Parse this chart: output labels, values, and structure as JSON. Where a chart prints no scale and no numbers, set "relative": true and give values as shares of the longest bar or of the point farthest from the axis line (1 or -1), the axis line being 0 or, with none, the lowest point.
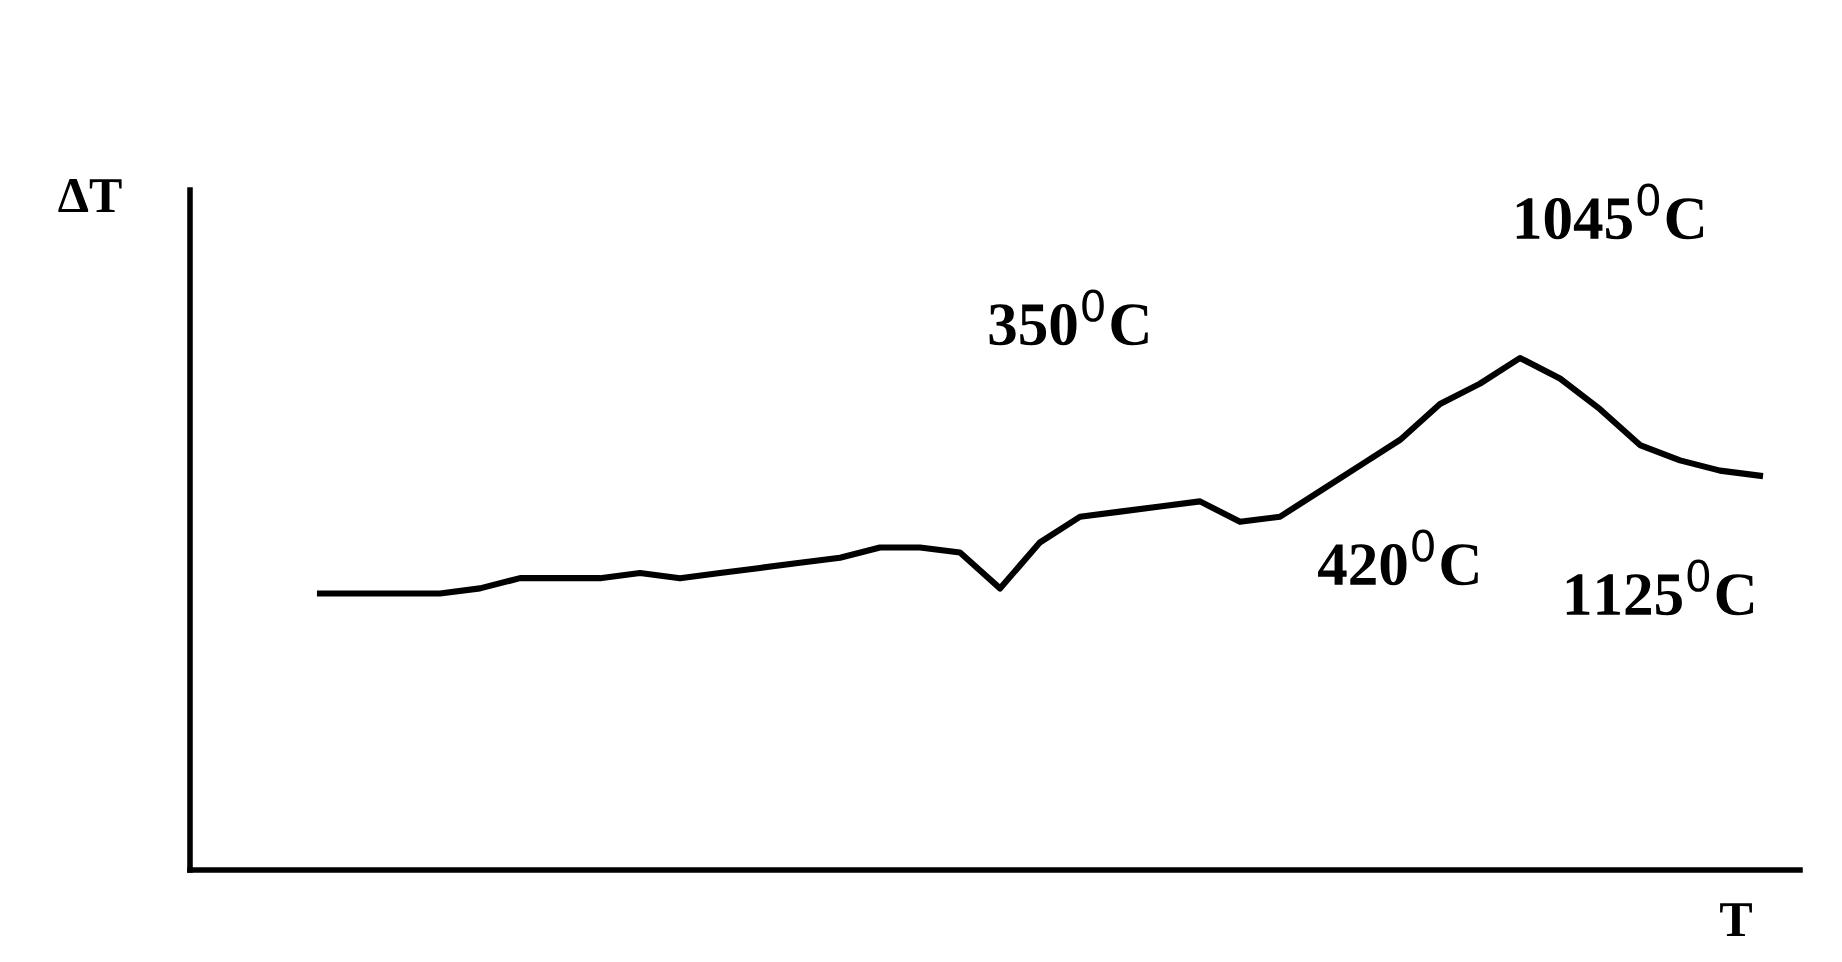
{
  "chart_data": {
    "type": "line",
    "relative": true,
    "xlabel": "T",
    "ylabel": "ΔT",
    "color": "#000000",
    "categories": [
      null,
      null,
      null,
      null,
      null,
      null,
      null,
      null,
      null,
      null,
      null,
      null,
      null,
      null,
      null,
      null,
      null,
      null,
      null,
      null,
      null,
      null,
      null,
      null,
      null,
      null,
      null,
      null,
      null,
      null,
      null,
      null,
      null,
      null,
      null,
      null,
      null
    ],
    "values": [
      0.54,
      0.54,
      0.54,
      0.54,
      0.55,
      0.57,
      0.57,
      0.57,
      0.58,
      0.57,
      0.58,
      0.59,
      0.6,
      0.61,
      0.63,
      0.63,
      0.62,
      0.55,
      0.64,
      0.69,
      0.7,
      0.71,
      0.72,
      0.68,
      0.69,
      0.74,
      0.79,
      0.84,
      0.91,
      0.95,
      1.0,
      0.96,
      0.9,
      0.83,
      0.8,
      0.78,
      0.77
    ],
    "annotations": [
      "350$^{0}$C",
      "420$^{0}$C",
      "1045$^{0}$C",
      "1125$^{0}$C"
    ],
    "grid": false,
    "legend": false,
    "marker": "none",
    "line_style": "solid"
  }
}
